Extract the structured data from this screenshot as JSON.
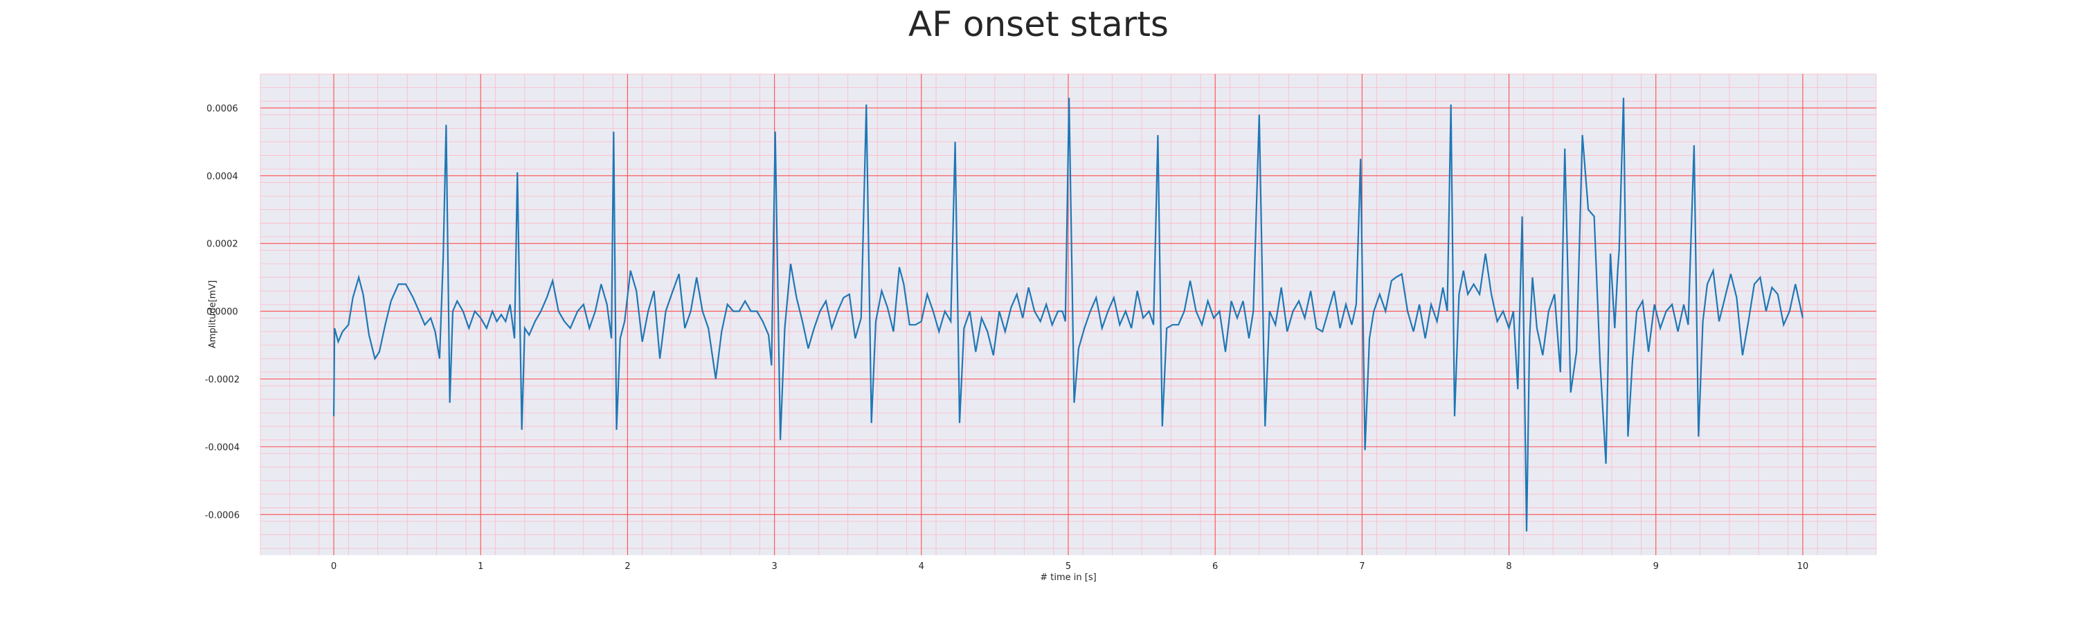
{
  "chart_data": {
    "type": "line",
    "title": "AF onset starts",
    "xlabel": "# time in [s]",
    "ylabel": "Amplitude[mV]",
    "xlim": [
      -0.5,
      10.5
    ],
    "ylim": [
      -0.00072,
      0.0007
    ],
    "xticks": [
      0,
      1,
      2,
      3,
      4,
      5,
      6,
      7,
      8,
      9,
      10
    ],
    "xtick_labels": [
      "0",
      "1",
      "2",
      "3",
      "4",
      "5",
      "6",
      "7",
      "8",
      "9",
      "10"
    ],
    "yticks": [
      -0.0006,
      -0.0004,
      -0.0002,
      0,
      0.0002,
      0.0004,
      0.0006
    ],
    "ytick_labels": [
      "-0.0006",
      "-0.0004",
      "-0.0002",
      "0.0000",
      "0.0002",
      "0.0004",
      "0.0006"
    ],
    "grid": true,
    "grid_minor": true,
    "background": "#eaeaf2",
    "grid_major_color": "#ff4d4d",
    "grid_minor_color": "#ffb3c1",
    "series": [
      {
        "color": "#1f77b4",
        "points": [
          [
            0.0,
            -0.00031
          ],
          [
            0.005,
            -5e-05
          ],
          [
            0.03,
            -9e-05
          ],
          [
            0.06,
            -6e-05
          ],
          [
            0.1,
            -4e-05
          ],
          [
            0.13,
            4e-05
          ],
          [
            0.17,
            0.0001
          ],
          [
            0.2,
            5e-05
          ],
          [
            0.24,
            -7e-05
          ],
          [
            0.28,
            -0.00014
          ],
          [
            0.31,
            -0.00012
          ],
          [
            0.35,
            -4e-05
          ],
          [
            0.39,
            3e-05
          ],
          [
            0.44,
            8e-05
          ],
          [
            0.49,
            8e-05
          ],
          [
            0.54,
            4e-05
          ],
          [
            0.58,
            0.0
          ],
          [
            0.62,
            -4e-05
          ],
          [
            0.66,
            -2e-05
          ],
          [
            0.69,
            -6e-05
          ],
          [
            0.72,
            -0.00014
          ],
          [
            0.745,
            0.00016
          ],
          [
            0.765,
            0.00055
          ],
          [
            0.79,
            -0.00027
          ],
          [
            0.81,
            0.0
          ],
          [
            0.84,
            3e-05
          ],
          [
            0.88,
            0.0
          ],
          [
            0.92,
            -5e-05
          ],
          [
            0.96,
            0.0
          ],
          [
            1.0,
            -2e-05
          ],
          [
            1.04,
            -5e-05
          ],
          [
            1.08,
            0.0
          ],
          [
            1.11,
            -3e-05
          ],
          [
            1.14,
            -1e-05
          ],
          [
            1.17,
            -3e-05
          ],
          [
            1.2,
            2e-05
          ],
          [
            1.23,
            -8e-05
          ],
          [
            1.25,
            0.00041
          ],
          [
            1.28,
            -0.00035
          ],
          [
            1.3,
            -5e-05
          ],
          [
            1.33,
            -7e-05
          ],
          [
            1.37,
            -3e-05
          ],
          [
            1.41,
            0.0
          ],
          [
            1.45,
            4e-05
          ],
          [
            1.49,
            9e-05
          ],
          [
            1.53,
            0.0
          ],
          [
            1.57,
            -3e-05
          ],
          [
            1.61,
            -5e-05
          ],
          [
            1.66,
            0.0
          ],
          [
            1.7,
            2e-05
          ],
          [
            1.74,
            -5e-05
          ],
          [
            1.78,
            0.0
          ],
          [
            1.82,
            8e-05
          ],
          [
            1.86,
            2e-05
          ],
          [
            1.89,
            -8e-05
          ],
          [
            1.905,
            0.00053
          ],
          [
            1.925,
            -0.00035
          ],
          [
            1.95,
            -8e-05
          ],
          [
            1.98,
            -3e-05
          ],
          [
            2.02,
            0.00012
          ],
          [
            2.06,
            6e-05
          ],
          [
            2.1,
            -9e-05
          ],
          [
            2.14,
            0.0
          ],
          [
            2.18,
            6e-05
          ],
          [
            2.22,
            -0.00014
          ],
          [
            2.26,
            0.0
          ],
          [
            2.3,
            5e-05
          ],
          [
            2.35,
            0.00011
          ],
          [
            2.39,
            -5e-05
          ],
          [
            2.43,
            0.0
          ],
          [
            2.47,
            0.0001
          ],
          [
            2.51,
            0.0
          ],
          [
            2.55,
            -5e-05
          ],
          [
            2.6,
            -0.0002
          ],
          [
            2.64,
            -6e-05
          ],
          [
            2.68,
            2e-05
          ],
          [
            2.72,
            0.0
          ],
          [
            2.76,
            0.0
          ],
          [
            2.8,
            3e-05
          ],
          [
            2.84,
            0.0
          ],
          [
            2.88,
            0.0
          ],
          [
            2.92,
            -3e-05
          ],
          [
            2.96,
            -7e-05
          ],
          [
            2.98,
            -0.00016
          ],
          [
            3.005,
            0.00053
          ],
          [
            3.04,
            -0.00038
          ],
          [
            3.07,
            -5e-05
          ],
          [
            3.11,
            0.00014
          ],
          [
            3.15,
            4e-05
          ],
          [
            3.19,
            -3e-05
          ],
          [
            3.23,
            -0.00011
          ],
          [
            3.27,
            -5e-05
          ],
          [
            3.31,
            0.0
          ],
          [
            3.35,
            3e-05
          ],
          [
            3.39,
            -5e-05
          ],
          [
            3.43,
            0.0
          ],
          [
            3.47,
            4e-05
          ],
          [
            3.51,
            5e-05
          ],
          [
            3.55,
            -8e-05
          ],
          [
            3.59,
            -2e-05
          ],
          [
            3.625,
            0.00061
          ],
          [
            3.66,
            -0.00033
          ],
          [
            3.69,
            -3e-05
          ],
          [
            3.73,
            6e-05
          ],
          [
            3.77,
            1e-05
          ],
          [
            3.81,
            -6e-05
          ],
          [
            3.85,
            0.00013
          ],
          [
            3.88,
            8e-05
          ],
          [
            3.92,
            -4e-05
          ],
          [
            3.96,
            -4e-05
          ],
          [
            4.0,
            -3e-05
          ],
          [
            4.04,
            5e-05
          ],
          [
            4.08,
            0.0
          ],
          [
            4.12,
            -6e-05
          ],
          [
            4.16,
            0.0
          ],
          [
            4.2,
            -3e-05
          ],
          [
            4.23,
            0.0005
          ],
          [
            4.26,
            -0.00033
          ],
          [
            4.29,
            -5e-05
          ],
          [
            4.33,
            0.0
          ],
          [
            4.37,
            -0.00012
          ],
          [
            4.41,
            -2e-05
          ],
          [
            4.45,
            -6e-05
          ],
          [
            4.49,
            -0.00013
          ],
          [
            4.53,
            0.0
          ],
          [
            4.57,
            -6e-05
          ],
          [
            4.61,
            1e-05
          ],
          [
            4.65,
            5e-05
          ],
          [
            4.69,
            -2e-05
          ],
          [
            4.73,
            7e-05
          ],
          [
            4.77,
            0.0
          ],
          [
            4.81,
            -3e-05
          ],
          [
            4.85,
            2e-05
          ],
          [
            4.89,
            -4e-05
          ],
          [
            4.93,
            0.0
          ],
          [
            4.96,
            0.0
          ],
          [
            4.98,
            -3e-05
          ],
          [
            5.005,
            0.00063
          ],
          [
            5.04,
            -0.00027
          ],
          [
            5.07,
            -0.00011
          ],
          [
            5.11,
            -5e-05
          ],
          [
            5.15,
            0.0
          ],
          [
            5.19,
            4e-05
          ],
          [
            5.23,
            -5e-05
          ],
          [
            5.27,
            0.0
          ],
          [
            5.31,
            4e-05
          ],
          [
            5.35,
            -4e-05
          ],
          [
            5.39,
            0.0
          ],
          [
            5.43,
            -5e-05
          ],
          [
            5.47,
            6e-05
          ],
          [
            5.51,
            -2e-05
          ],
          [
            5.55,
            0.0
          ],
          [
            5.58,
            -4e-05
          ],
          [
            5.61,
            0.00052
          ],
          [
            5.64,
            -0.00034
          ],
          [
            5.67,
            -5e-05
          ],
          [
            5.71,
            -4e-05
          ],
          [
            5.75,
            -4e-05
          ],
          [
            5.79,
            0.0
          ],
          [
            5.83,
            9e-05
          ],
          [
            5.87,
            0.0
          ],
          [
            5.91,
            -4e-05
          ],
          [
            5.95,
            3e-05
          ],
          [
            5.99,
            -2e-05
          ],
          [
            6.03,
            0.0
          ],
          [
            6.07,
            -0.00012
          ],
          [
            6.11,
            3e-05
          ],
          [
            6.15,
            -2e-05
          ],
          [
            6.19,
            3e-05
          ],
          [
            6.23,
            -8e-05
          ],
          [
            6.26,
            0.0
          ],
          [
            6.3,
            0.00058
          ],
          [
            6.34,
            -0.00034
          ],
          [
            6.37,
            0.0
          ],
          [
            6.41,
            -4e-05
          ],
          [
            6.45,
            7e-05
          ],
          [
            6.49,
            -6e-05
          ],
          [
            6.53,
            0.0
          ],
          [
            6.57,
            3e-05
          ],
          [
            6.61,
            -2e-05
          ],
          [
            6.65,
            6e-05
          ],
          [
            6.69,
            -5e-05
          ],
          [
            6.73,
            -6e-05
          ],
          [
            6.77,
            0.0
          ],
          [
            6.81,
            6e-05
          ],
          [
            6.85,
            -5e-05
          ],
          [
            6.89,
            2e-05
          ],
          [
            6.93,
            -4e-05
          ],
          [
            6.96,
            2e-05
          ],
          [
            6.99,
            0.00045
          ],
          [
            7.02,
            -0.00041
          ],
          [
            7.05,
            -8e-05
          ],
          [
            7.08,
            0.0
          ],
          [
            7.12,
            5e-05
          ],
          [
            7.16,
            0.0
          ],
          [
            7.2,
            9e-05
          ],
          [
            7.23,
            0.0001
          ],
          [
            7.27,
            0.00011
          ],
          [
            7.31,
            0.0
          ],
          [
            7.35,
            -6e-05
          ],
          [
            7.39,
            2e-05
          ],
          [
            7.43,
            -8e-05
          ],
          [
            7.47,
            2e-05
          ],
          [
            7.51,
            -3e-05
          ],
          [
            7.55,
            7e-05
          ],
          [
            7.58,
            0.0
          ],
          [
            7.605,
            0.00061
          ],
          [
            7.63,
            -0.00031
          ],
          [
            7.66,
            5e-05
          ],
          [
            7.69,
            0.00012
          ],
          [
            7.72,
            5e-05
          ],
          [
            7.76,
            8e-05
          ],
          [
            7.8,
            5e-05
          ],
          [
            7.84,
            0.00017
          ],
          [
            7.88,
            5e-05
          ],
          [
            7.92,
            -3e-05
          ],
          [
            7.96,
            0.0
          ],
          [
            8.0,
            -5e-05
          ],
          [
            8.03,
            0.0
          ],
          [
            8.06,
            -0.00023
          ],
          [
            8.09,
            0.00028
          ],
          [
            8.12,
            -0.00065
          ],
          [
            8.14,
            -8e-05
          ],
          [
            8.16,
            0.0001
          ],
          [
            8.19,
            -5e-05
          ],
          [
            8.23,
            -0.00013
          ],
          [
            8.27,
            0.0
          ],
          [
            8.31,
            5e-05
          ],
          [
            8.35,
            -0.00018
          ],
          [
            8.38,
            0.00048
          ],
          [
            8.42,
            -0.00024
          ],
          [
            8.46,
            -0.00012
          ],
          [
            8.5,
            0.00052
          ],
          [
            8.54,
            0.0003
          ],
          [
            8.58,
            0.00028
          ],
          [
            8.62,
            -0.00015
          ],
          [
            8.66,
            -0.00045
          ],
          [
            8.69,
            0.00017
          ],
          [
            8.72,
            -5e-05
          ],
          [
            8.74,
            0.00012
          ],
          [
            8.75,
            0.00018
          ],
          [
            8.78,
            0.00063
          ],
          [
            8.81,
            -0.00037
          ],
          [
            8.84,
            -0.00015
          ],
          [
            8.87,
            0.0
          ],
          [
            8.91,
            3e-05
          ],
          [
            8.95,
            -0.00012
          ],
          [
            8.99,
            2e-05
          ],
          [
            9.03,
            -5e-05
          ],
          [
            9.07,
            0.0
          ],
          [
            9.11,
            2e-05
          ],
          [
            9.15,
            -6e-05
          ],
          [
            9.19,
            2e-05
          ],
          [
            9.22,
            -4e-05
          ],
          [
            9.26,
            0.00049
          ],
          [
            9.29,
            -0.00037
          ],
          [
            9.32,
            -3e-05
          ],
          [
            9.35,
            8e-05
          ],
          [
            9.39,
            0.00012
          ],
          [
            9.43,
            -3e-05
          ],
          [
            9.47,
            4e-05
          ],
          [
            9.51,
            0.00011
          ],
          [
            9.55,
            4e-05
          ],
          [
            9.59,
            -0.00013
          ],
          [
            9.63,
            -3e-05
          ],
          [
            9.67,
            8e-05
          ],
          [
            9.71,
            0.0001
          ],
          [
            9.75,
            0.0
          ],
          [
            9.79,
            7e-05
          ],
          [
            9.83,
            5e-05
          ],
          [
            9.87,
            -4e-05
          ],
          [
            9.91,
            0.0
          ],
          [
            9.95,
            8e-05
          ],
          [
            9.99,
            0.0
          ],
          [
            10.0,
            -2e-05
          ]
        ]
      }
    ]
  }
}
